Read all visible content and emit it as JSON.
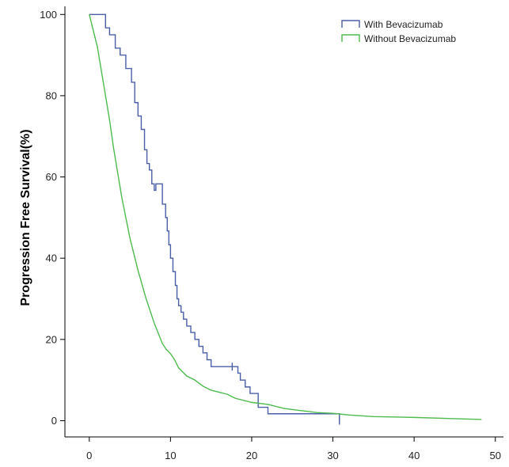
{
  "chart_data": {
    "type": "line",
    "title": "",
    "xlabel": "",
    "ylabel": "Progression Free Survival(%)",
    "xlim": [
      -3,
      51
    ],
    "ylim": [
      -4,
      102
    ],
    "x_ticks": [
      0,
      10,
      20,
      30,
      40,
      50
    ],
    "x_tick_labels": [
      "0",
      "10",
      "20",
      "30",
      "40",
      "50"
    ],
    "y_ticks": [
      0,
      20,
      40,
      60,
      80,
      100
    ],
    "y_tick_labels": [
      "0",
      "20",
      "40",
      "60",
      "80",
      "100"
    ],
    "grid": false,
    "legend_position": "top-right",
    "series": [
      {
        "name": "With Bevacizumab",
        "color": "#4a5fa8",
        "step": true,
        "x": [
          0,
          2.0,
          2.5,
          3.2,
          3.8,
          4.5,
          5.2,
          5.6,
          6.0,
          6.4,
          6.8,
          7.1,
          7.4,
          7.7,
          8.0,
          8.2,
          8.4,
          9.0,
          9.4,
          9.6,
          9.8,
          10.0,
          10.3,
          10.6,
          10.8,
          11.0,
          11.3,
          11.6,
          12.0,
          12.5,
          13.0,
          13.5,
          14.0,
          14.5,
          15.0,
          16.0,
          18.3,
          18.6,
          19.2,
          19.8,
          20.8,
          22.0,
          30.8
        ],
        "y": [
          100,
          96.7,
          95.0,
          91.7,
          90.0,
          86.7,
          83.3,
          78.3,
          75.0,
          71.7,
          66.7,
          63.3,
          61.7,
          58.3,
          56.7,
          58.3,
          58.3,
          53.3,
          50.0,
          46.7,
          43.3,
          40.0,
          36.7,
          33.3,
          30.0,
          28.3,
          26.7,
          25.0,
          23.3,
          21.7,
          20.0,
          18.3,
          16.7,
          15.0,
          13.3,
          13.3,
          11.7,
          10.0,
          8.3,
          6.7,
          3.3,
          1.7,
          0
        ],
        "censor_x": [
          17.6,
          30.8
        ]
      },
      {
        "name": "Without Bevacizumab",
        "color": "#4dbb4d",
        "step": false,
        "x": [
          0,
          0.5,
          1,
          1.5,
          2,
          2.5,
          3,
          3.5,
          4,
          4.5,
          5,
          5.5,
          6,
          6.5,
          7,
          7.5,
          8,
          8.5,
          9,
          9.5,
          10,
          10.5,
          11,
          12,
          13,
          14,
          15,
          16,
          17,
          18,
          20,
          22,
          24,
          26,
          28,
          30,
          32,
          35,
          40,
          45,
          48.3
        ],
        "y": [
          100,
          96,
          92,
          86,
          80,
          74,
          67,
          61,
          55,
          50,
          45,
          41,
          37,
          33.5,
          30,
          27,
          24,
          21.5,
          19,
          17.5,
          16.5,
          15,
          13,
          11,
          10,
          8.5,
          7.5,
          7,
          6.5,
          5.5,
          4.5,
          4,
          3,
          2.5,
          2,
          1.8,
          1.4,
          1,
          0.8,
          0.5,
          0.3
        ]
      }
    ]
  }
}
